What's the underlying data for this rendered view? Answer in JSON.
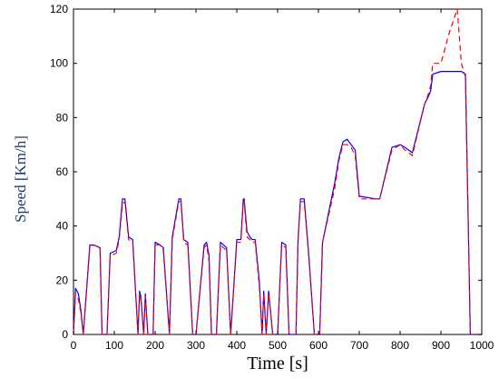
{
  "chart_data": {
    "type": "line",
    "title": "",
    "xlabel": "Time [s]",
    "ylabel": "Speed [Km/h]",
    "xlim": [
      0,
      1000
    ],
    "ylim": [
      0,
      120
    ],
    "xticks": [
      0,
      100,
      200,
      300,
      400,
      500,
      600,
      700,
      800,
      900,
      1000
    ],
    "yticks": [
      0,
      20,
      40,
      60,
      80,
      100,
      120
    ],
    "grid": false,
    "legend": "none",
    "series": [
      {
        "color": "#0000ff",
        "style": "solid",
        "x": [
          0,
          5,
          12,
          18,
          24,
          40,
          50,
          65,
          70,
          82,
          90,
          105,
          112,
          120,
          126,
          135,
          145,
          158,
          162,
          165,
          172,
          176,
          182,
          195,
          200,
          212,
          220,
          235,
          242,
          258,
          263,
          270,
          280,
          292,
          300,
          320,
          326,
          332,
          338,
          350,
          360,
          375,
          385,
          400,
          410,
          416,
          418,
          425,
          432,
          438,
          445,
          455,
          462,
          466,
          472,
          478,
          488,
          500,
          510,
          520,
          528,
          545,
          550,
          556,
          565,
          575,
          590,
          603,
          610,
          640,
          650,
          660,
          670,
          680,
          690,
          700,
          740,
          750,
          780,
          800,
          812,
          830,
          860,
          870,
          875,
          880,
          900,
          920,
          940,
          950,
          960,
          972,
          980,
          1000
        ],
        "y": [
          0,
          17,
          15,
          9,
          0,
          33,
          33,
          32,
          0,
          0,
          30,
          31,
          36,
          50,
          50,
          36,
          35,
          0,
          16,
          14,
          0,
          15,
          0,
          0,
          34,
          33,
          32,
          0,
          36,
          50,
          50,
          35,
          34,
          0,
          0,
          33,
          34,
          29,
          0,
          0,
          34,
          32,
          0,
          35,
          35,
          50,
          50,
          38,
          36,
          35,
          35,
          20,
          0,
          16,
          0,
          16,
          0,
          0,
          34,
          33,
          0,
          0,
          35,
          50,
          50,
          32,
          0,
          0,
          34,
          56,
          65,
          71,
          72,
          70,
          68,
          51,
          50,
          50,
          69,
          70,
          69,
          67,
          85,
          88,
          90,
          96,
          97,
          97,
          97,
          97,
          96,
          0,
          0,
          0
        ]
      },
      {
        "color": "#ff0000",
        "style": "dashed",
        "x": [
          0,
          5,
          12,
          18,
          24,
          40,
          50,
          65,
          70,
          82,
          90,
          105,
          112,
          120,
          126,
          135,
          145,
          158,
          162,
          165,
          172,
          176,
          182,
          195,
          200,
          212,
          220,
          235,
          242,
          258,
          263,
          270,
          280,
          292,
          300,
          320,
          326,
          332,
          338,
          350,
          360,
          375,
          385,
          400,
          410,
          416,
          418,
          425,
          432,
          438,
          445,
          455,
          462,
          466,
          472,
          478,
          488,
          500,
          510,
          520,
          528,
          545,
          550,
          556,
          565,
          575,
          590,
          603,
          610,
          640,
          650,
          660,
          670,
          680,
          690,
          700,
          740,
          750,
          780,
          800,
          812,
          830,
          860,
          870,
          875,
          880,
          900,
          920,
          940,
          950,
          960,
          972,
          980,
          1000
        ],
        "y": [
          0,
          15,
          13,
          8,
          0,
          32,
          33,
          32,
          0,
          0,
          29,
          30,
          35,
          48,
          49,
          35,
          34,
          0,
          15,
          13,
          0,
          14,
          0,
          0,
          33,
          33,
          31,
          0,
          35,
          49,
          49,
          34,
          33,
          0,
          0,
          32,
          33,
          27,
          0,
          0,
          33,
          31,
          0,
          34,
          34,
          49,
          49,
          36,
          35,
          34,
          34,
          18,
          0,
          15,
          0,
          15,
          0,
          0,
          33,
          32,
          0,
          0,
          34,
          49,
          49,
          31,
          0,
          0,
          34,
          54,
          64,
          70,
          70,
          69,
          66,
          50,
          50,
          50,
          68,
          70,
          68,
          66,
          85,
          89,
          92,
          100,
          100,
          111,
          120,
          100,
          95,
          0,
          0,
          0
        ]
      }
    ]
  }
}
